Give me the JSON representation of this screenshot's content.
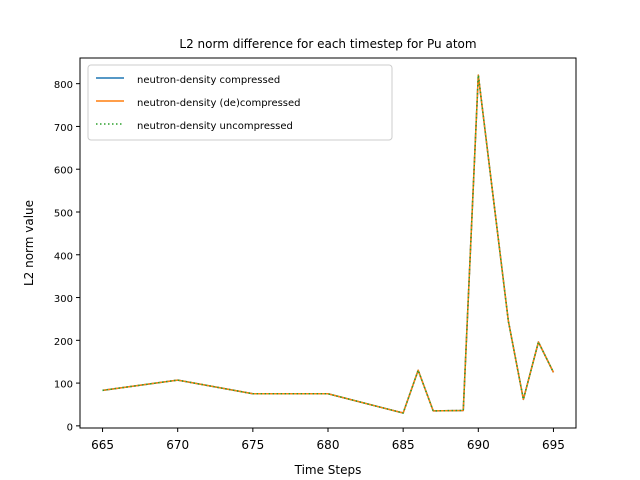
{
  "chart_data": {
    "type": "line",
    "title": "L2 norm difference for each timestep  for Pu atom",
    "xlabel": "Time Steps",
    "ylabel": "L2 norm value",
    "xlim": [
      663.5,
      696.5
    ],
    "ylim": [
      -5,
      860
    ],
    "xticks": [
      665,
      670,
      675,
      680,
      685,
      690,
      695
    ],
    "yticks": [
      0,
      100,
      200,
      300,
      400,
      500,
      600,
      700,
      800
    ],
    "grid": false,
    "legend_position": "top-left",
    "x": [
      665,
      670,
      675,
      680,
      685,
      686,
      687,
      689,
      690,
      692,
      693,
      694,
      695
    ],
    "series": [
      {
        "name": "neutron-density compressed",
        "color": "#1f77b4",
        "style": "solid",
        "values": [
          83,
          107,
          75,
          75,
          30,
          130,
          35,
          36,
          820,
          245,
          62,
          196,
          125
        ]
      },
      {
        "name": "neutron-density (de)compressed",
        "color": "#ff7f0e",
        "style": "solid",
        "values": [
          83,
          107,
          75,
          75,
          30,
          130,
          35,
          36,
          820,
          245,
          62,
          196,
          125
        ]
      },
      {
        "name": "neutron-density uncompressed",
        "color": "#2ca02c",
        "style": "dotted",
        "values": [
          83,
          107,
          75,
          75,
          30,
          130,
          35,
          36,
          820,
          245,
          62,
          196,
          125
        ]
      }
    ]
  }
}
